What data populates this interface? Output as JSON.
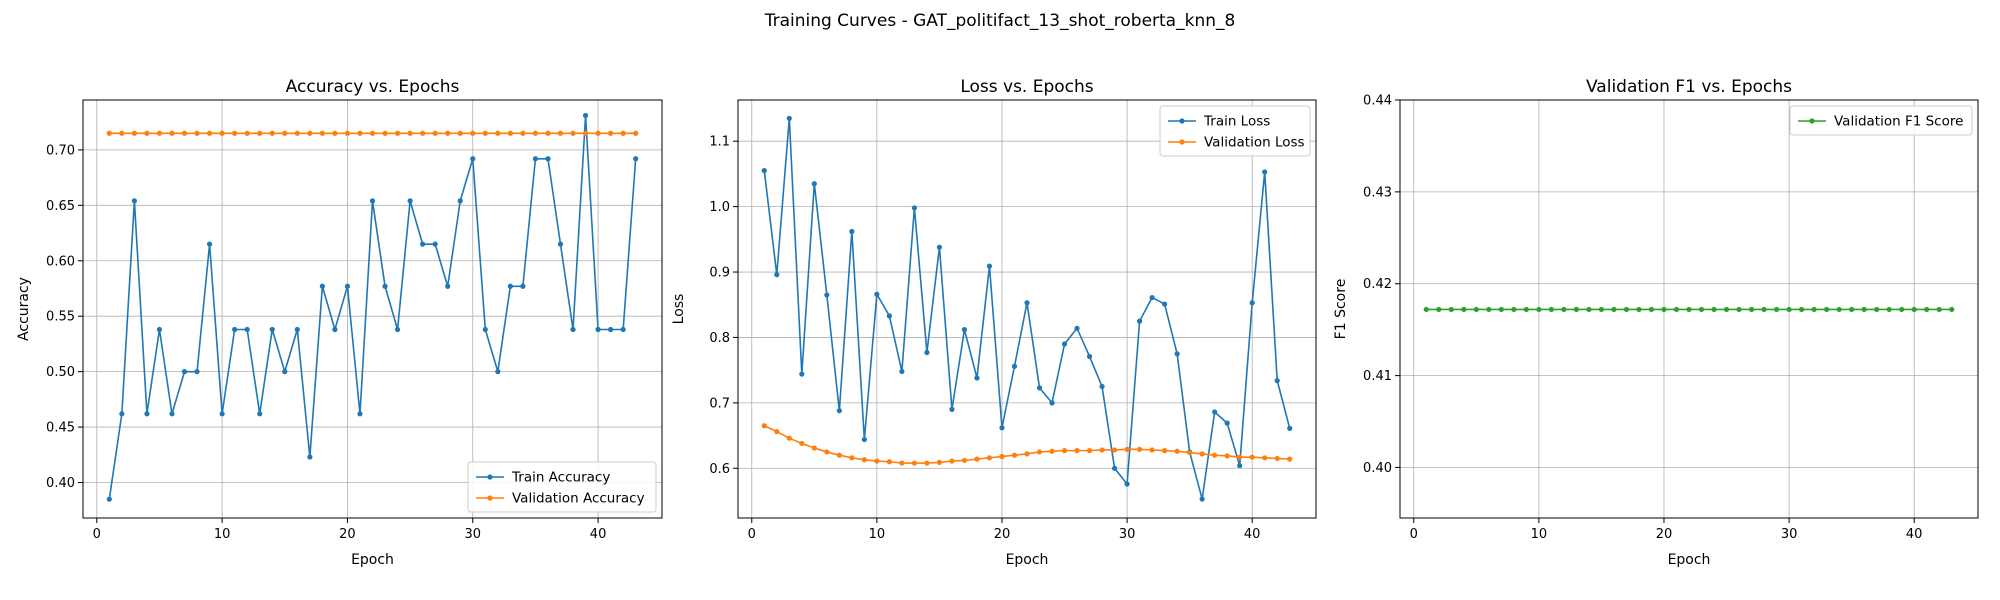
{
  "figure_title": "Training Curves - GAT_politifact_13_shot_roberta_knn_8",
  "chart_data": [
    {
      "type": "line",
      "title": "Accuracy vs. Epochs",
      "xlabel": "Epoch",
      "ylabel": "Accuracy",
      "xlim": [
        -1.1,
        45.1
      ],
      "ylim": [
        0.368,
        0.745
      ],
      "xticks": [
        0,
        10,
        20,
        30,
        40
      ],
      "xtick_labels": [
        "0",
        "10",
        "20",
        "30",
        "40"
      ],
      "yticks": [
        0.4,
        0.45,
        0.5,
        0.55,
        0.6,
        0.65,
        0.7
      ],
      "ytick_labels": [
        "0.40",
        "0.45",
        "0.50",
        "0.55",
        "0.60",
        "0.65",
        "0.70"
      ],
      "grid": true,
      "legend_position": "lower-right",
      "x": [
        1,
        2,
        3,
        4,
        5,
        6,
        7,
        8,
        9,
        10,
        11,
        12,
        13,
        14,
        15,
        16,
        17,
        18,
        19,
        20,
        21,
        22,
        23,
        24,
        25,
        26,
        27,
        28,
        29,
        30,
        31,
        32,
        33,
        34,
        35,
        36,
        37,
        38,
        39,
        40,
        41,
        42,
        43
      ],
      "series": [
        {
          "name": "Train Accuracy",
          "color": "#1f77b4",
          "values": [
            0.385,
            0.462,
            0.654,
            0.462,
            0.538,
            0.462,
            0.5,
            0.5,
            0.615,
            0.462,
            0.538,
            0.538,
            0.462,
            0.538,
            0.5,
            0.538,
            0.423,
            0.577,
            0.538,
            0.577,
            0.462,
            0.654,
            0.577,
            0.538,
            0.654,
            0.615,
            0.615,
            0.577,
            0.654,
            0.692,
            0.538,
            0.5,
            0.577,
            0.577,
            0.692,
            0.692,
            0.615,
            0.538,
            0.731,
            0.538,
            0.538,
            0.538,
            0.692
          ]
        },
        {
          "name": "Validation Accuracy",
          "color": "#ff7f0e",
          "values": [
            0.715,
            0.715,
            0.715,
            0.715,
            0.715,
            0.715,
            0.715,
            0.715,
            0.715,
            0.715,
            0.715,
            0.715,
            0.715,
            0.715,
            0.715,
            0.715,
            0.715,
            0.715,
            0.715,
            0.715,
            0.715,
            0.715,
            0.715,
            0.715,
            0.715,
            0.715,
            0.715,
            0.715,
            0.715,
            0.715,
            0.715,
            0.715,
            0.715,
            0.715,
            0.715,
            0.715,
            0.715,
            0.715,
            0.715,
            0.715,
            0.715,
            0.715,
            0.715
          ]
        }
      ]
    },
    {
      "type": "line",
      "title": "Loss vs. Epochs",
      "xlabel": "Epoch",
      "ylabel": "Loss",
      "xlim": [
        -1.1,
        45.1
      ],
      "ylim": [
        0.524,
        1.163
      ],
      "xticks": [
        0,
        10,
        20,
        30,
        40
      ],
      "xtick_labels": [
        "0",
        "10",
        "20",
        "30",
        "40"
      ],
      "yticks": [
        0.6,
        0.7,
        0.8,
        0.9,
        1.0,
        1.1
      ],
      "ytick_labels": [
        "0.6",
        "0.7",
        "0.8",
        "0.9",
        "1.0",
        "1.1"
      ],
      "grid": true,
      "legend_position": "upper-right",
      "x": [
        1,
        2,
        3,
        4,
        5,
        6,
        7,
        8,
        9,
        10,
        11,
        12,
        13,
        14,
        15,
        16,
        17,
        18,
        19,
        20,
        21,
        22,
        23,
        24,
        25,
        26,
        27,
        28,
        29,
        30,
        31,
        32,
        33,
        34,
        35,
        36,
        37,
        38,
        39,
        40,
        41,
        42,
        43
      ],
      "series": [
        {
          "name": "Train Loss",
          "color": "#1f77b4",
          "values": [
            1.055,
            0.896,
            1.135,
            0.744,
            1.035,
            0.865,
            0.688,
            0.962,
            0.644,
            0.866,
            0.833,
            0.748,
            0.998,
            0.777,
            0.938,
            0.69,
            0.812,
            0.738,
            0.909,
            0.662,
            0.756,
            0.853,
            0.723,
            0.7,
            0.79,
            0.814,
            0.771,
            0.725,
            0.6,
            0.576,
            0.825,
            0.861,
            0.851,
            0.775,
            0.625,
            0.553,
            0.686,
            0.669,
            0.604,
            0.853,
            1.053,
            0.734,
            0.661
          ]
        },
        {
          "name": "Validation Loss",
          "color": "#ff7f0e",
          "values": [
            0.665,
            0.656,
            0.646,
            0.638,
            0.631,
            0.625,
            0.62,
            0.616,
            0.613,
            0.611,
            0.61,
            0.608,
            0.608,
            0.608,
            0.609,
            0.611,
            0.612,
            0.614,
            0.616,
            0.618,
            0.62,
            0.622,
            0.625,
            0.626,
            0.627,
            0.627,
            0.627,
            0.628,
            0.628,
            0.629,
            0.629,
            0.628,
            0.627,
            0.626,
            0.624,
            0.622,
            0.62,
            0.619,
            0.617,
            0.617,
            0.616,
            0.615,
            0.614
          ]
        }
      ]
    },
    {
      "type": "line",
      "title": "Validation F1 vs. Epochs",
      "xlabel": "Epoch",
      "ylabel": "F1 Score",
      "xlim": [
        -1.1,
        45.1
      ],
      "ylim": [
        0.3945,
        0.44
      ],
      "xticks": [
        0,
        10,
        20,
        30,
        40
      ],
      "xtick_labels": [
        "0",
        "10",
        "20",
        "30",
        "40"
      ],
      "yticks": [
        0.4,
        0.41,
        0.42,
        0.43,
        0.44
      ],
      "ytick_labels": [
        "0.40",
        "0.41",
        "0.42",
        "0.43",
        "0.44"
      ],
      "grid": true,
      "legend_position": "upper-right",
      "x": [
        1,
        2,
        3,
        4,
        5,
        6,
        7,
        8,
        9,
        10,
        11,
        12,
        13,
        14,
        15,
        16,
        17,
        18,
        19,
        20,
        21,
        22,
        23,
        24,
        25,
        26,
        27,
        28,
        29,
        30,
        31,
        32,
        33,
        34,
        35,
        36,
        37,
        38,
        39,
        40,
        41,
        42,
        43
      ],
      "series": [
        {
          "name": "Validation F1 Score",
          "color": "#2ca02c",
          "values": [
            0.4172,
            0.4172,
            0.4172,
            0.4172,
            0.4172,
            0.4172,
            0.4172,
            0.4172,
            0.4172,
            0.4172,
            0.4172,
            0.4172,
            0.4172,
            0.4172,
            0.4172,
            0.4172,
            0.4172,
            0.4172,
            0.4172,
            0.4172,
            0.4172,
            0.4172,
            0.4172,
            0.4172,
            0.4172,
            0.4172,
            0.4172,
            0.4172,
            0.4172,
            0.4172,
            0.4172,
            0.4172,
            0.4172,
            0.4172,
            0.4172,
            0.4172,
            0.4172,
            0.4172,
            0.4172,
            0.4172,
            0.4172,
            0.4172,
            0.4172
          ]
        }
      ]
    }
  ]
}
